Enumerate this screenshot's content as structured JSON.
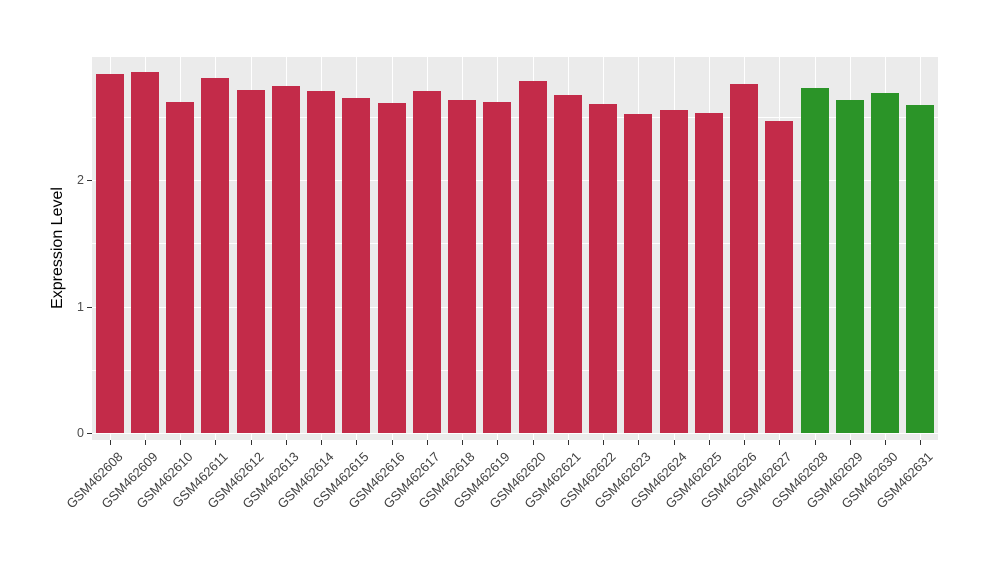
{
  "chart_data": {
    "type": "bar",
    "title": "",
    "xlabel": "",
    "ylabel": "Expression Level",
    "ylim": [
      0,
      2.97
    ],
    "yticks": [
      0,
      1,
      2
    ],
    "yticks_minor": [
      0.5,
      1.5,
      2.5
    ],
    "grid": true,
    "legend": "none",
    "panel_background": "#EBEBEB",
    "gridline_color": "#FFFFFF",
    "categories": [
      "GSM462608",
      "GSM462609",
      "GSM462610",
      "GSM462611",
      "GSM462612",
      "GSM462613",
      "GSM462614",
      "GSM462615",
      "GSM462616",
      "GSM462617",
      "GSM462618",
      "GSM462619",
      "GSM462620",
      "GSM462621",
      "GSM462622",
      "GSM462623",
      "GSM462624",
      "GSM462625",
      "GSM462626",
      "GSM462627",
      "GSM462628",
      "GSM462629",
      "GSM462630",
      "GSM462631"
    ],
    "values": [
      2.84,
      2.85,
      2.62,
      2.81,
      2.71,
      2.74,
      2.7,
      2.65,
      2.61,
      2.7,
      2.63,
      2.62,
      2.78,
      2.67,
      2.6,
      2.52,
      2.55,
      2.53,
      2.76,
      2.47,
      2.73,
      2.63,
      2.69,
      2.59
    ],
    "colors": [
      "#C32B49",
      "#C32B49",
      "#C32B49",
      "#C32B49",
      "#C32B49",
      "#C32B49",
      "#C32B49",
      "#C32B49",
      "#C32B49",
      "#C32B49",
      "#C32B49",
      "#C32B49",
      "#C32B49",
      "#C32B49",
      "#C32B49",
      "#C32B49",
      "#C32B49",
      "#C32B49",
      "#C32B49",
      "#C32B49",
      "#2B9428",
      "#2B9428",
      "#2B9428",
      "#2B9428"
    ],
    "color_groups": {
      "red": "#C32B49",
      "green": "#2B9428"
    }
  }
}
